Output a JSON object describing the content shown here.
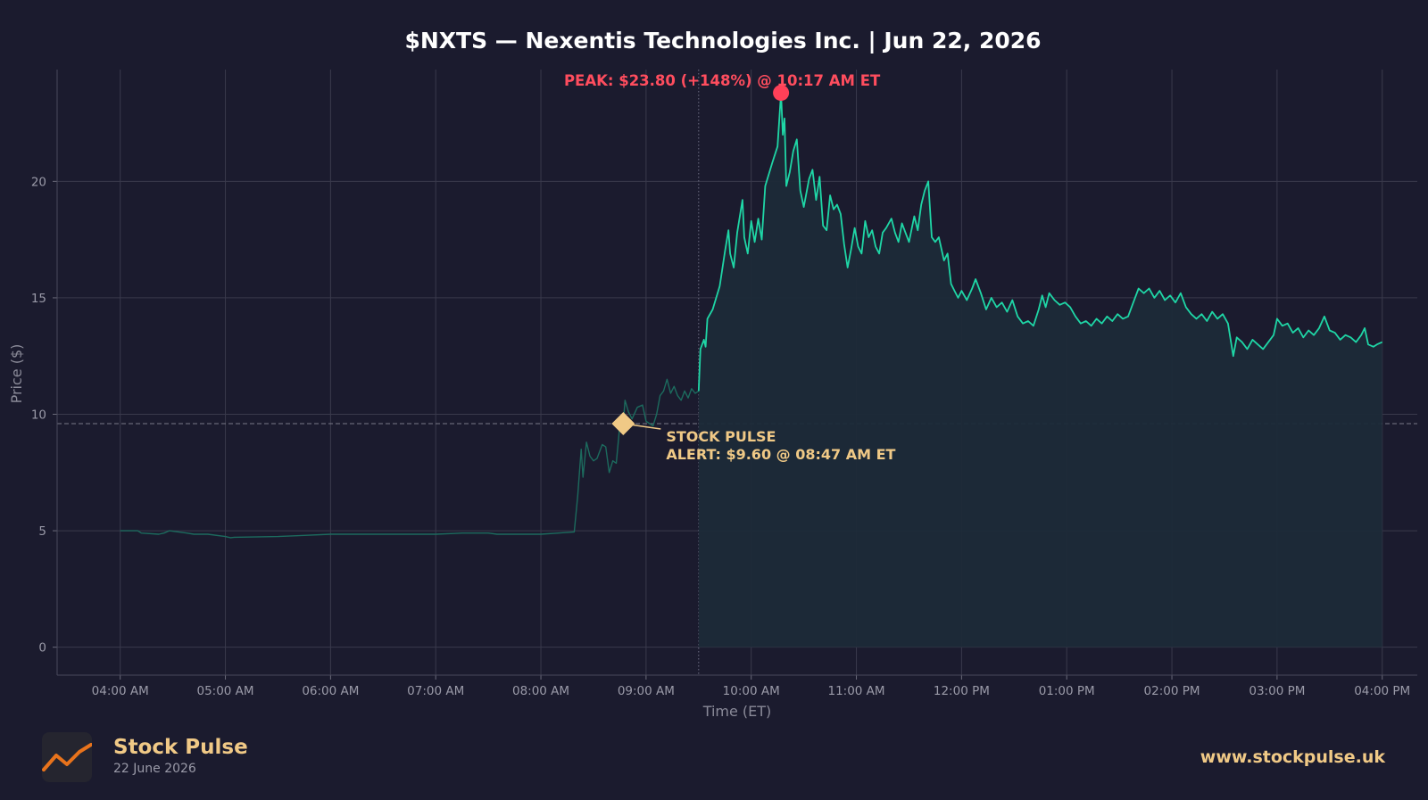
{
  "colors": {
    "background": "#1b1b2e",
    "plot_background": "#1b1b2e",
    "grid": "#3a3a4c",
    "line": "#1fd6a6",
    "line_premarket": "#1c6b5e",
    "fill": "#1c2a38",
    "peak": "#ff4058",
    "alert": "#f0c986",
    "brand_accent": "#f0c986"
  },
  "footer": {
    "brand_name": "Stock Pulse",
    "brand_date": "22 June 2026",
    "url": "www.stockpulse.uk",
    "logo_icon": "rising-line-chart-icon"
  },
  "chart_data": {
    "type": "line",
    "title": "$NXTS — Nexentis Technologies Inc.  |  Jun 22, 2026",
    "xlabel": "Time (ET)",
    "ylabel": "Price ($)",
    "x_unit": "time of day (ET)",
    "xlim": [
      "03:24 AM",
      "04:20 PM"
    ],
    "ylim": [
      -1.2,
      24.8
    ],
    "x_ticks": [
      "04:00 AM",
      "05:00 AM",
      "06:00 AM",
      "07:00 AM",
      "08:00 AM",
      "09:00 AM",
      "10:00 AM",
      "11:00 AM",
      "12:00 PM",
      "01:00 PM",
      "02:00 PM",
      "03:00 PM",
      "04:00 PM"
    ],
    "y_ticks": [
      0,
      5,
      10,
      15,
      20
    ],
    "y_tick_labels": [
      "0",
      "5",
      "10",
      "15",
      "20"
    ],
    "grid": true,
    "market_open": "09:30 AM",
    "series": [
      {
        "session": "pre-market",
        "points": [
          [
            "04:00 AM",
            5.0
          ],
          [
            "04:10 AM",
            5.0
          ],
          [
            "04:12 AM",
            4.9
          ],
          [
            "04:22 AM",
            4.85
          ],
          [
            "04:25 AM",
            4.9
          ],
          [
            "04:28 AM",
            5.0
          ],
          [
            "04:38 AM",
            4.9
          ],
          [
            "04:42 AM",
            4.85
          ],
          [
            "04:50 AM",
            4.85
          ],
          [
            "05:00 AM",
            4.75
          ],
          [
            "05:03 AM",
            4.7
          ],
          [
            "05:05 AM",
            4.72
          ],
          [
            "05:30 AM",
            4.75
          ],
          [
            "05:45 AM",
            4.8
          ],
          [
            "06:00 AM",
            4.85
          ],
          [
            "06:30 AM",
            4.85
          ],
          [
            "07:00 AM",
            4.85
          ],
          [
            "07:10 AM",
            4.88
          ],
          [
            "07:15 AM",
            4.9
          ],
          [
            "07:30 AM",
            4.9
          ],
          [
            "07:35 AM",
            4.85
          ],
          [
            "07:45 AM",
            4.85
          ],
          [
            "08:00 AM",
            4.85
          ],
          [
            "08:10 AM",
            4.9
          ],
          [
            "08:19 AM",
            4.95
          ],
          [
            "08:21 AM",
            6.5
          ],
          [
            "08:23 AM",
            8.5
          ],
          [
            "08:24 AM",
            7.3
          ],
          [
            "08:26 AM",
            8.8
          ],
          [
            "08:28 AM",
            8.2
          ],
          [
            "08:30 AM",
            8.0
          ],
          [
            "08:32 AM",
            8.1
          ],
          [
            "08:35 AM",
            8.7
          ],
          [
            "08:37 AM",
            8.6
          ],
          [
            "08:39 AM",
            7.5
          ],
          [
            "08:41 AM",
            8.0
          ],
          [
            "08:43 AM",
            7.9
          ],
          [
            "08:45 AM",
            9.5
          ],
          [
            "08:47 AM",
            9.6
          ],
          [
            "08:48 AM",
            10.6
          ],
          [
            "08:50 AM",
            10.1
          ],
          [
            "08:52 AM",
            9.8
          ],
          [
            "08:55 AM",
            10.3
          ],
          [
            "08:58 AM",
            10.4
          ],
          [
            "09:00 AM",
            9.7
          ],
          [
            "09:02 AM",
            9.6
          ],
          [
            "09:04 AM",
            9.5
          ],
          [
            "09:06 AM",
            10.0
          ],
          [
            "09:08 AM",
            10.8
          ],
          [
            "09:10 AM",
            11.0
          ],
          [
            "09:12 AM",
            11.5
          ],
          [
            "09:14 AM",
            10.9
          ],
          [
            "09:16 AM",
            11.2
          ],
          [
            "09:18 AM",
            10.8
          ],
          [
            "09:20 AM",
            10.6
          ],
          [
            "09:22 AM",
            11.0
          ],
          [
            "09:24 AM",
            10.7
          ],
          [
            "09:26 AM",
            11.1
          ],
          [
            "09:28 AM",
            10.9
          ],
          [
            "09:30 AM",
            11.0
          ]
        ]
      },
      {
        "session": "regular",
        "points": [
          [
            "09:30 AM",
            11.0
          ],
          [
            "09:31 AM",
            12.8
          ],
          [
            "09:33 AM",
            13.2
          ],
          [
            "09:34 AM",
            12.9
          ],
          [
            "09:35 AM",
            14.1
          ],
          [
            "09:38 AM",
            14.5
          ],
          [
            "09:42 AM",
            15.5
          ],
          [
            "09:45 AM",
            17.0
          ],
          [
            "09:47 AM",
            17.9
          ],
          [
            "09:48 AM",
            16.9
          ],
          [
            "09:50 AM",
            16.3
          ],
          [
            "09:52 AM",
            17.8
          ],
          [
            "09:55 AM",
            19.2
          ],
          [
            "09:56 AM",
            17.6
          ],
          [
            "09:58 AM",
            16.9
          ],
          [
            "10:00 AM",
            18.3
          ],
          [
            "10:02 AM",
            17.4
          ],
          [
            "10:04 AM",
            18.4
          ],
          [
            "10:06 AM",
            17.5
          ],
          [
            "10:08 AM",
            19.8
          ],
          [
            "10:12 AM",
            20.8
          ],
          [
            "10:15 AM",
            21.5
          ],
          [
            "10:17 AM",
            23.8
          ],
          [
            "10:18 AM",
            22.0
          ],
          [
            "10:19 AM",
            22.7
          ],
          [
            "10:20 AM",
            19.8
          ],
          [
            "10:22 AM",
            20.4
          ],
          [
            "10:24 AM",
            21.3
          ],
          [
            "10:26 AM",
            21.8
          ],
          [
            "10:28 AM",
            19.6
          ],
          [
            "10:30 AM",
            18.9
          ],
          [
            "10:33 AM",
            20.1
          ],
          [
            "10:35 AM",
            20.5
          ],
          [
            "10:37 AM",
            19.2
          ],
          [
            "10:39 AM",
            20.2
          ],
          [
            "10:41 AM",
            18.1
          ],
          [
            "10:43 AM",
            17.9
          ],
          [
            "10:45 AM",
            19.4
          ],
          [
            "10:47 AM",
            18.8
          ],
          [
            "10:49 AM",
            19.0
          ],
          [
            "10:51 AM",
            18.6
          ],
          [
            "10:53 AM",
            17.3
          ],
          [
            "10:55 AM",
            16.3
          ],
          [
            "10:57 AM",
            17.1
          ],
          [
            "10:59 AM",
            18.0
          ],
          [
            "11:01 AM",
            17.2
          ],
          [
            "11:03 AM",
            16.9
          ],
          [
            "11:05 AM",
            18.3
          ],
          [
            "11:07 AM",
            17.6
          ],
          [
            "11:09 AM",
            17.9
          ],
          [
            "11:11 AM",
            17.2
          ],
          [
            "11:13 AM",
            16.9
          ],
          [
            "11:15 AM",
            17.8
          ],
          [
            "11:17 AM",
            18.0
          ],
          [
            "11:20 AM",
            18.4
          ],
          [
            "11:22 AM",
            17.8
          ],
          [
            "11:24 AM",
            17.4
          ],
          [
            "11:26 AM",
            18.2
          ],
          [
            "11:28 AM",
            17.8
          ],
          [
            "11:30 AM",
            17.4
          ],
          [
            "11:33 AM",
            18.5
          ],
          [
            "11:35 AM",
            17.9
          ],
          [
            "11:37 AM",
            19.0
          ],
          [
            "11:39 AM",
            19.6
          ],
          [
            "11:41 AM",
            20.0
          ],
          [
            "11:43 AM",
            17.6
          ],
          [
            "11:45 AM",
            17.4
          ],
          [
            "11:47 AM",
            17.6
          ],
          [
            "11:50 AM",
            16.6
          ],
          [
            "11:52 AM",
            16.9
          ],
          [
            "11:54 AM",
            15.6
          ],
          [
            "11:56 AM",
            15.3
          ],
          [
            "11:58 AM",
            15.0
          ],
          [
            "12:00 PM",
            15.3
          ],
          [
            "12:03 PM",
            14.9
          ],
          [
            "12:06 PM",
            15.4
          ],
          [
            "12:08 PM",
            15.8
          ],
          [
            "12:11 PM",
            15.2
          ],
          [
            "12:14 PM",
            14.5
          ],
          [
            "12:17 PM",
            15.0
          ],
          [
            "12:20 PM",
            14.6
          ],
          [
            "12:23 PM",
            14.8
          ],
          [
            "12:26 PM",
            14.4
          ],
          [
            "12:29 PM",
            14.9
          ],
          [
            "12:32 PM",
            14.2
          ],
          [
            "12:35 PM",
            13.9
          ],
          [
            "12:38 PM",
            14.0
          ],
          [
            "12:41 PM",
            13.8
          ],
          [
            "12:44 PM",
            14.5
          ],
          [
            "12:46 PM",
            15.1
          ],
          [
            "12:48 PM",
            14.6
          ],
          [
            "12:50 PM",
            15.2
          ],
          [
            "12:53 PM",
            14.9
          ],
          [
            "12:56 PM",
            14.7
          ],
          [
            "12:59 PM",
            14.8
          ],
          [
            "01:02 PM",
            14.6
          ],
          [
            "01:05 PM",
            14.2
          ],
          [
            "01:08 PM",
            13.9
          ],
          [
            "01:11 PM",
            14.0
          ],
          [
            "01:14 PM",
            13.8
          ],
          [
            "01:17 PM",
            14.1
          ],
          [
            "01:20 PM",
            13.9
          ],
          [
            "01:23 PM",
            14.2
          ],
          [
            "01:26 PM",
            14.0
          ],
          [
            "01:29 PM",
            14.3
          ],
          [
            "01:32 PM",
            14.1
          ],
          [
            "01:35 PM",
            14.2
          ],
          [
            "01:38 PM",
            14.8
          ],
          [
            "01:41 PM",
            15.4
          ],
          [
            "01:44 PM",
            15.2
          ],
          [
            "01:47 PM",
            15.4
          ],
          [
            "01:50 PM",
            15.0
          ],
          [
            "01:53 PM",
            15.3
          ],
          [
            "01:56 PM",
            14.9
          ],
          [
            "01:59 PM",
            15.1
          ],
          [
            "02:02 PM",
            14.8
          ],
          [
            "02:05 PM",
            15.2
          ],
          [
            "02:08 PM",
            14.6
          ],
          [
            "02:11 PM",
            14.3
          ],
          [
            "02:14 PM",
            14.1
          ],
          [
            "02:17 PM",
            14.3
          ],
          [
            "02:20 PM",
            14.0
          ],
          [
            "02:23 PM",
            14.4
          ],
          [
            "02:26 PM",
            14.1
          ],
          [
            "02:29 PM",
            14.3
          ],
          [
            "02:32 PM",
            13.9
          ],
          [
            "02:35 PM",
            12.5
          ],
          [
            "02:37 PM",
            13.3
          ],
          [
            "02:40 PM",
            13.1
          ],
          [
            "02:43 PM",
            12.8
          ],
          [
            "02:46 PM",
            13.2
          ],
          [
            "02:49 PM",
            13.0
          ],
          [
            "02:52 PM",
            12.8
          ],
          [
            "02:55 PM",
            13.1
          ],
          [
            "02:58 PM",
            13.4
          ],
          [
            "03:00 PM",
            14.1
          ],
          [
            "03:03 PM",
            13.8
          ],
          [
            "03:06 PM",
            13.9
          ],
          [
            "03:09 PM",
            13.5
          ],
          [
            "03:12 PM",
            13.7
          ],
          [
            "03:15 PM",
            13.3
          ],
          [
            "03:18 PM",
            13.6
          ],
          [
            "03:21 PM",
            13.4
          ],
          [
            "03:24 PM",
            13.7
          ],
          [
            "03:27 PM",
            14.2
          ],
          [
            "03:30 PM",
            13.6
          ],
          [
            "03:33 PM",
            13.5
          ],
          [
            "03:36 PM",
            13.2
          ],
          [
            "03:39 PM",
            13.4
          ],
          [
            "03:42 PM",
            13.3
          ],
          [
            "03:45 PM",
            13.1
          ],
          [
            "03:48 PM",
            13.4
          ],
          [
            "03:50 PM",
            13.7
          ],
          [
            "03:52 PM",
            13.0
          ],
          [
            "03:55 PM",
            12.9
          ],
          [
            "03:57 PM",
            13.0
          ],
          [
            "04:00 PM",
            13.1
          ]
        ]
      }
    ],
    "annotations": [
      {
        "kind": "peak",
        "text": "PEAK: $23.80 (+148%) @ 10:17 AM ET",
        "x": "10:17 AM",
        "y": 23.8
      },
      {
        "kind": "alert",
        "line1": "STOCK PULSE",
        "line2": "ALERT: $9.60 @ 08:47 AM ET",
        "x": "08:47 AM",
        "y": 9.6,
        "reference_line_y": 9.6
      }
    ]
  }
}
